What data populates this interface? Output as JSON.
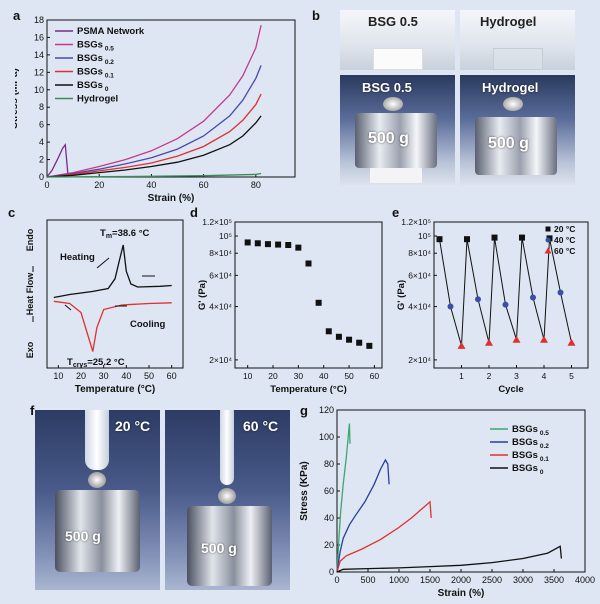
{
  "panels": {
    "a": "a",
    "b": "b",
    "c": "c",
    "d": "d",
    "e": "e",
    "f": "f",
    "g": "g"
  },
  "panel_b": {
    "top_left_label": "BSG 0.5",
    "top_right_label": "Hydrogel",
    "bottom_left_label": "BSG 0.5",
    "bottom_right_label": "Hydrogel",
    "weight_left": "500 g",
    "weight_right": "500 g"
  },
  "panel_c": {
    "tm_label": "T",
    "tm_sub": "m",
    "tm_value": "=38.6 °C",
    "tcrys_label": "T",
    "tcrys_sub": "crys",
    "tcrys_value": "=25.2 °C",
    "heating": "Heating",
    "cooling": "Cooling",
    "y_top": "Endo",
    "y_mid": "Heat Flow",
    "y_bottom": "Exo",
    "xlabel": "Temperature (°C)",
    "xticks": [
      "10",
      "20",
      "30",
      "40",
      "50",
      "60"
    ]
  },
  "panel_f": {
    "left_temp": "20 °C",
    "right_temp": "60 °C",
    "left_weight": "500 g",
    "right_weight": "500 g"
  },
  "chart_data": [
    {
      "id": "a",
      "type": "line",
      "xlabel": "Strain (%)",
      "ylabel": "Stress (MPa)",
      "xlim": [
        0,
        95
      ],
      "ylim": [
        0,
        18
      ],
      "xticks": [
        0,
        20,
        40,
        60,
        80
      ],
      "yticks": [
        0,
        2,
        4,
        6,
        8,
        10,
        12,
        14,
        16,
        18
      ],
      "legend_placement": "top-left",
      "series": [
        {
          "name": "PSMA Network",
          "sub": "",
          "color": "#7a2a8c",
          "x": [
            0,
            2,
            4,
            6,
            7,
            8
          ],
          "y": [
            0,
            0.8,
            2.0,
            3.3,
            3.7,
            0.3
          ]
        },
        {
          "name": "BSGs",
          "sub": "0.5",
          "color": "#c43a8c",
          "x": [
            0,
            10,
            20,
            30,
            40,
            50,
            60,
            70,
            75,
            80,
            82
          ],
          "y": [
            0,
            0.5,
            1.2,
            2.0,
            3.0,
            4.4,
            6.4,
            9.4,
            11.6,
            14.8,
            17.4
          ]
        },
        {
          "name": "BSGs",
          "sub": "0.2",
          "color": "#4a4aa8",
          "x": [
            0,
            10,
            20,
            30,
            40,
            50,
            60,
            70,
            75,
            80,
            82
          ],
          "y": [
            0,
            0.4,
            0.9,
            1.5,
            2.2,
            3.2,
            4.7,
            7.0,
            8.8,
            11.3,
            12.8
          ]
        },
        {
          "name": "BSGs",
          "sub": "0.1",
          "color": "#e03030",
          "x": [
            0,
            10,
            20,
            30,
            40,
            50,
            60,
            70,
            75,
            80,
            82
          ],
          "y": [
            0,
            0.3,
            0.7,
            1.1,
            1.6,
            2.4,
            3.5,
            5.2,
            6.5,
            8.3,
            9.5
          ]
        },
        {
          "name": "BSGs",
          "sub": "0",
          "color": "#111111",
          "x": [
            0,
            10,
            20,
            30,
            40,
            50,
            60,
            70,
            75,
            80,
            82
          ],
          "y": [
            0,
            0.2,
            0.5,
            0.8,
            1.2,
            1.7,
            2.5,
            3.7,
            4.7,
            6.2,
            7.0
          ]
        },
        {
          "name": "Hydrogel",
          "sub": "",
          "color": "#3a8a5a",
          "x": [
            0,
            20,
            40,
            60,
            80,
            82
          ],
          "y": [
            0,
            0.03,
            0.08,
            0.15,
            0.3,
            0.4
          ]
        }
      ]
    },
    {
      "id": "c",
      "type": "line",
      "xlabel": "Temperature (°C)",
      "xlim": [
        5,
        65
      ],
      "xticks": [
        10,
        20,
        30,
        40,
        50,
        60
      ],
      "series": [
        {
          "name": "Heating",
          "color": "#111111",
          "x": [
            8,
            15,
            25,
            32,
            35,
            37,
            38.6,
            40,
            42,
            45,
            55,
            60
          ],
          "y": [
            0.1,
            0.14,
            0.18,
            0.22,
            0.35,
            0.6,
            0.8,
            0.45,
            0.28,
            0.24,
            0.25,
            0.26
          ]
        },
        {
          "name": "Cooling",
          "color": "#e03030",
          "x": [
            8,
            15,
            20,
            23,
            25.2,
            27,
            30,
            38,
            50,
            60
          ],
          "y": [
            0.05,
            0.02,
            -0.1,
            -0.4,
            -0.62,
            -0.3,
            -0.06,
            0.0,
            0.02,
            0.03
          ]
        }
      ]
    },
    {
      "id": "d",
      "type": "scatter",
      "xlabel": "Temperature (°C)",
      "ylabel": "G' (Pa)",
      "xlim": [
        5,
        63
      ],
      "ylim": [
        18000,
        120000
      ],
      "yscale": "log",
      "xticks": [
        10,
        20,
        30,
        40,
        50,
        60
      ],
      "yticks": [
        20000,
        40000,
        60000,
        80000,
        100000,
        120000
      ],
      "ytick_labels": [
        "2×10⁴",
        "4×10⁴",
        "6×10⁴",
        "8×10⁴",
        "10⁵",
        "1.2×10⁵"
      ],
      "series": [
        {
          "name": "",
          "color": "#111111",
          "marker": "square",
          "x": [
            10,
            14,
            18,
            22,
            26,
            30,
            34,
            38,
            42,
            46,
            50,
            54,
            58
          ],
          "y": [
            92000,
            91000,
            90000,
            89500,
            89000,
            86000,
            70000,
            42000,
            29000,
            27000,
            26000,
            25000,
            24000
          ]
        }
      ]
    },
    {
      "id": "e",
      "type": "scatter",
      "xlabel": "Cycle",
      "ylabel": "G' (Pa)",
      "xlim": [
        0,
        5.6
      ],
      "ylim": [
        18000,
        120000
      ],
      "yscale": "log",
      "xticks": [
        1,
        2,
        3,
        4,
        5
      ],
      "yticks": [
        20000,
        40000,
        60000,
        80000,
        100000,
        120000
      ],
      "ytick_labels": [
        "2×10⁴",
        "4×10⁴",
        "6×10⁴",
        "8×10⁴",
        "10⁵",
        "1.2×10⁵"
      ],
      "legend_placement": "top-right",
      "series": [
        {
          "name": "20 °C",
          "color": "#111111",
          "marker": "square",
          "x": [
            0.2,
            1.2,
            2.2,
            3.2,
            4.2
          ],
          "y": [
            96000,
            96000,
            98000,
            98000,
            97000
          ]
        },
        {
          "name": "40 °C",
          "color": "#3a4ea8",
          "marker": "circle",
          "x": [
            0.6,
            1.6,
            2.6,
            3.6,
            4.6
          ],
          "y": [
            40000,
            44000,
            41000,
            45000,
            48000
          ]
        },
        {
          "name": "60 °C",
          "color": "#e03030",
          "marker": "triangle",
          "x": [
            1.0,
            2.0,
            3.0,
            4.0,
            5.0
          ],
          "y": [
            24000,
            25000,
            26000,
            26000,
            25000
          ]
        }
      ],
      "line": {
        "color": "#111111",
        "x": [
          0.2,
          0.6,
          1.0,
          1.2,
          1.6,
          2.0,
          2.2,
          2.6,
          3.0,
          3.2,
          3.6,
          4.0,
          4.2,
          4.6,
          5.0
        ],
        "y": [
          96000,
          40000,
          24000,
          96000,
          44000,
          25000,
          98000,
          41000,
          26000,
          98000,
          45000,
          26000,
          97000,
          48000,
          25000
        ]
      }
    },
    {
      "id": "g",
      "type": "line",
      "xlabel": "Strain (%)",
      "ylabel": "Stress (KPa)",
      "xlim": [
        0,
        4000
      ],
      "ylim": [
        0,
        120
      ],
      "xticks": [
        0,
        500,
        1000,
        1500,
        2000,
        2500,
        3000,
        3500,
        4000
      ],
      "yticks": [
        0,
        20,
        40,
        60,
        80,
        100,
        120
      ],
      "legend_placement": "top-right",
      "series": [
        {
          "name": "BSGs",
          "sub": "0.5",
          "color": "#3aa870",
          "x": [
            0,
            30,
            60,
            100,
            150,
            180,
            200,
            210
          ],
          "y": [
            0,
            25,
            45,
            65,
            85,
            100,
            110,
            95
          ]
        },
        {
          "name": "BSGs",
          "sub": "0.2",
          "color": "#2a3ea0",
          "x": [
            0,
            50,
            100,
            200,
            300,
            450,
            600,
            700,
            780,
            820,
            840
          ],
          "y": [
            0,
            15,
            25,
            35,
            42,
            52,
            65,
            76,
            83,
            80,
            65
          ]
        },
        {
          "name": "BSGs",
          "sub": "0.1",
          "color": "#e03030",
          "x": [
            0,
            50,
            150,
            400,
            700,
            1000,
            1200,
            1400,
            1500,
            1520
          ],
          "y": [
            0,
            8,
            12,
            17,
            24,
            33,
            40,
            48,
            52,
            40
          ]
        },
        {
          "name": "BSGs",
          "sub": "0",
          "color": "#111111",
          "x": [
            0,
            100,
            500,
            1000,
            1500,
            2000,
            2500,
            3000,
            3400,
            3600,
            3620
          ],
          "y": [
            0,
            2,
            2.5,
            3,
            4,
            5,
            7,
            10,
            14,
            19,
            10
          ]
        }
      ]
    }
  ]
}
